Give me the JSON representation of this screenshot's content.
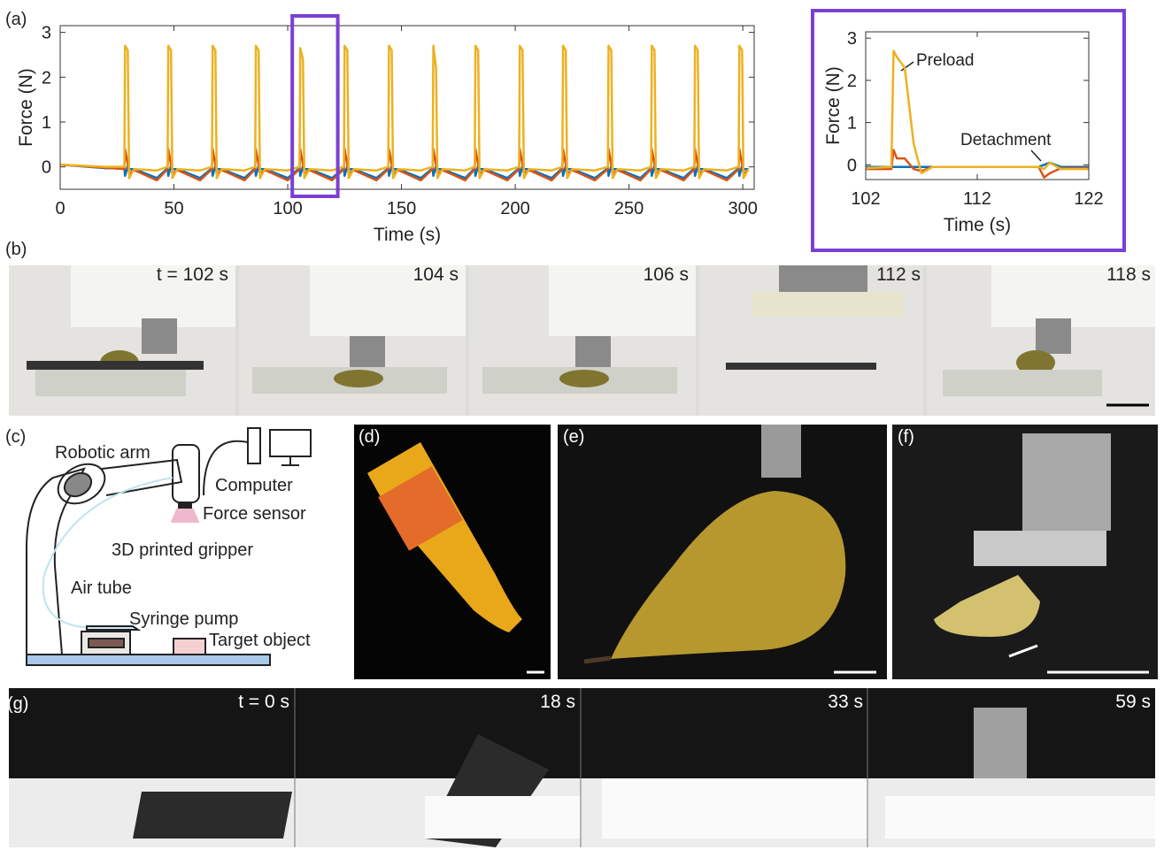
{
  "panel_labels": [
    "(a)",
    "(b)",
    "(c)",
    "(d)",
    "(e)",
    "(f)",
    "(g)"
  ],
  "chart_data": [
    {
      "type": "line",
      "xlabel": "Time (s)",
      "ylabel": "Force (N)",
      "xlim": [
        0,
        305
      ],
      "xticks": [
        0,
        50,
        100,
        150,
        200,
        250,
        300
      ],
      "ylim": [
        -0.5,
        3.15
      ],
      "yticks": [
        0,
        1,
        2,
        3
      ],
      "x": [
        0,
        20,
        28.2,
        28.5,
        29.7,
        30.3,
        32.5,
        42.5,
        47.2,
        47.5,
        48.7,
        49.3,
        51.5,
        61.5,
        66.7,
        67,
        68.2,
        68.8,
        71,
        81,
        85.7,
        86,
        87.2,
        87.8,
        90,
        100,
        105.2,
        105.5,
        106.7,
        107.3,
        109.5,
        119.5,
        124.7,
        125,
        126.2,
        126.8,
        129,
        139,
        144.2,
        144.5,
        145.7,
        146.3,
        148.5,
        158.5,
        163.7,
        164,
        165.2,
        165.8,
        168,
        178,
        182.2,
        182.5,
        183.7,
        184.3,
        186.5,
        196.5,
        201.7,
        202,
        203.2,
        203.8,
        206,
        216,
        220.7,
        221,
        222.2,
        222.8,
        225,
        235,
        240.7,
        241,
        242.2,
        242.8,
        245,
        255,
        259.7,
        260,
        261.2,
        261.8,
        264,
        274,
        278.7,
        279,
        280.2,
        280.8,
        283,
        293,
        298.2,
        298.5,
        299.7,
        300.3,
        302.5
      ],
      "series": [
        {
          "color": "#0072bd",
          "values": [
            0.05,
            -0.03,
            -0.03,
            -0.2,
            0.02,
            -0.05,
            -0.05,
            -0.25,
            -0.03,
            -0.2,
            0.02,
            -0.05,
            -0.05,
            -0.25,
            -0.03,
            -0.2,
            0.02,
            -0.05,
            -0.05,
            -0.25,
            -0.03,
            -0.2,
            0.02,
            -0.05,
            -0.05,
            -0.25,
            -0.03,
            -0.2,
            0.02,
            -0.05,
            -0.05,
            -0.25,
            -0.03,
            -0.2,
            0.02,
            -0.05,
            -0.05,
            -0.25,
            -0.03,
            -0.2,
            0.02,
            -0.05,
            -0.05,
            -0.25,
            -0.03,
            -0.2,
            0.02,
            -0.05,
            -0.05,
            -0.25,
            -0.03,
            -0.2,
            0.02,
            -0.05,
            -0.05,
            -0.25,
            -0.03,
            -0.2,
            0.02,
            -0.05,
            -0.05,
            -0.25,
            -0.03,
            -0.2,
            0.02,
            -0.05,
            -0.05,
            -0.25,
            -0.03,
            -0.2,
            0.02,
            -0.05,
            -0.05,
            -0.25,
            -0.03,
            -0.2,
            0.02,
            -0.05,
            -0.05,
            -0.25,
            -0.03,
            -0.2,
            0.02,
            -0.05,
            -0.05,
            -0.25,
            -0.03,
            -0.2,
            0.02,
            -0.05,
            -0.05
          ]
        },
        {
          "color": "#d95319",
          "values": [
            0.05,
            -0.02,
            -0.05,
            0.4,
            0.05,
            -0.15,
            -0.07,
            -0.3,
            -0.05,
            0.4,
            0.05,
            -0.15,
            -0.07,
            -0.3,
            -0.05,
            0.4,
            0.05,
            -0.15,
            -0.07,
            -0.3,
            -0.05,
            0.4,
            0.05,
            -0.15,
            -0.07,
            -0.3,
            -0.05,
            0.4,
            0.05,
            -0.15,
            -0.07,
            -0.3,
            -0.05,
            0.4,
            0.05,
            -0.15,
            -0.07,
            -0.3,
            -0.05,
            0.4,
            0.05,
            -0.15,
            -0.07,
            -0.3,
            -0.05,
            0.4,
            0.05,
            -0.15,
            -0.07,
            -0.3,
            -0.05,
            0.4,
            0.05,
            -0.15,
            -0.07,
            -0.3,
            -0.05,
            0.4,
            0.05,
            -0.15,
            -0.07,
            -0.3,
            -0.05,
            0.4,
            0.05,
            -0.15,
            -0.07,
            -0.3,
            -0.05,
            0.4,
            0.05,
            -0.15,
            -0.07,
            -0.3,
            -0.05,
            0.4,
            0.05,
            -0.15,
            -0.07,
            -0.3,
            -0.05,
            0.4,
            0.05,
            -0.15,
            -0.07,
            -0.3,
            -0.05,
            0.4,
            0.05,
            -0.15,
            -0.07
          ]
        },
        {
          "color": "#edb120",
          "values": [
            0.05,
            0.0,
            0,
            2.7,
            2.6,
            -0.25,
            -0.05,
            -0.08,
            0,
            2.7,
            2.6,
            -0.25,
            -0.05,
            -0.08,
            0,
            2.7,
            2.6,
            -0.25,
            -0.05,
            -0.08,
            0,
            2.7,
            2.6,
            -0.25,
            -0.05,
            -0.08,
            0,
            2.65,
            2.4,
            -0.25,
            -0.05,
            -0.08,
            0,
            2.7,
            2.6,
            -0.25,
            -0.05,
            -0.08,
            0,
            2.7,
            2.6,
            -0.25,
            -0.05,
            -0.08,
            0,
            2.7,
            2.2,
            -0.25,
            -0.05,
            -0.08,
            0,
            2.7,
            2.6,
            -0.25,
            -0.05,
            -0.08,
            0,
            2.7,
            2.6,
            -0.25,
            -0.05,
            -0.08,
            0,
            2.7,
            2.6,
            -0.25,
            -0.05,
            -0.08,
            0,
            2.7,
            2.6,
            -0.25,
            -0.05,
            -0.08,
            0,
            2.7,
            2.6,
            -0.25,
            -0.05,
            -0.08,
            0,
            2.7,
            2.6,
            -0.25,
            -0.05,
            -0.08,
            0,
            2.7,
            2.6,
            -0.25,
            -0.05
          ]
        }
      ]
    },
    {
      "type": "line",
      "xlabel": "Time (s)",
      "ylabel": "Force (N)",
      "xlim": [
        102,
        122
      ],
      "xticks": [
        102,
        112,
        122
      ],
      "ylim": [
        -0.35,
        3.15
      ],
      "yticks": [
        0,
        1,
        2,
        3
      ],
      "annotations": [
        "Preload",
        "Detachment"
      ],
      "x": [
        102,
        104.3,
        104.5,
        104.8,
        105.5,
        106.3,
        107,
        108,
        117.5,
        118,
        118.5,
        119.5,
        122
      ],
      "series": [
        {
          "color": "#0072bd",
          "values": [
            -0.05,
            -0.05,
            -0.05,
            -0.05,
            -0.05,
            -0.05,
            -0.05,
            -0.05,
            -0.05,
            0.0,
            0.05,
            -0.05,
            -0.05
          ]
        },
        {
          "color": "#d95319",
          "values": [
            -0.1,
            -0.1,
            0.35,
            0.15,
            0.15,
            -0.1,
            -0.15,
            -0.05,
            -0.05,
            -0.3,
            -0.2,
            -0.08,
            -0.08
          ]
        },
        {
          "color": "#edb120",
          "values": [
            -0.08,
            -0.05,
            2.7,
            2.55,
            2.3,
            0.5,
            -0.2,
            -0.05,
            -0.05,
            -0.1,
            0.05,
            -0.1,
            -0.1
          ]
        }
      ]
    }
  ],
  "frames_b": [
    "t = 102 s",
    "104 s",
    "106 s",
    "112 s",
    "118 s"
  ],
  "diagram": [
    "Robotic arm",
    "Computer",
    "Force sensor",
    "3D printed gripper",
    "Air tube",
    "Syringe pump",
    "Target object"
  ],
  "frames_g": [
    "t = 0 s",
    "18 s",
    "33 s",
    "59 s"
  ]
}
